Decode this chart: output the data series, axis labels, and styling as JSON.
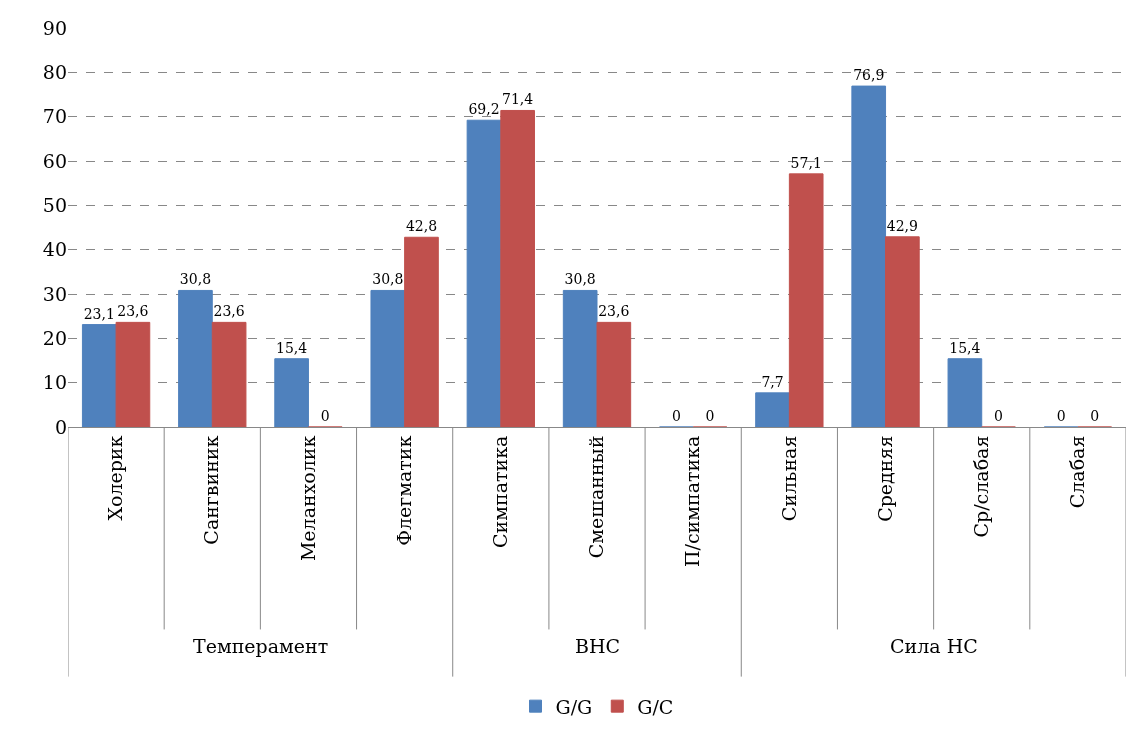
{
  "chart_data": {
    "type": "bar",
    "categories": [
      "Холерик",
      "Сангвиник",
      "Меланхолик",
      "Флегматик",
      "Симпатика",
      "Смешанный",
      "П/симпатика",
      "Сильная",
      "Средняя",
      "Ср/слабая",
      "Слабая"
    ],
    "series": [
      {
        "name": "G/G",
        "color": "#4f81bd",
        "values": [
          23.1,
          30.8,
          15.4,
          30.8,
          69.2,
          30.8,
          0,
          7.7,
          76.9,
          15.4,
          0
        ],
        "value_labels": [
          "23,1",
          "30,8",
          "15,4",
          "30,8",
          "69,2",
          "30,8",
          "0",
          "7,7",
          "76,9",
          "15,4",
          "0"
        ]
      },
      {
        "name": "G/C",
        "color": "#c0504d",
        "values": [
          23.6,
          23.6,
          0,
          42.8,
          71.4,
          23.6,
          0,
          57.1,
          42.9,
          0,
          0
        ],
        "value_labels": [
          "23,6",
          "23,6",
          "0",
          "42,8",
          "71,4",
          "23,6",
          "0",
          "57,1",
          "42,9",
          "0",
          "0"
        ]
      }
    ],
    "annotations": [
      "Темперамент",
      "ВНС",
      "Сила НС"
    ],
    "ylim": [
      0,
      90
    ],
    "yticks": [
      0,
      10,
      20,
      30,
      40,
      50,
      60,
      70,
      80,
      90
    ],
    "grid": "y",
    "legend": "bottom"
  }
}
